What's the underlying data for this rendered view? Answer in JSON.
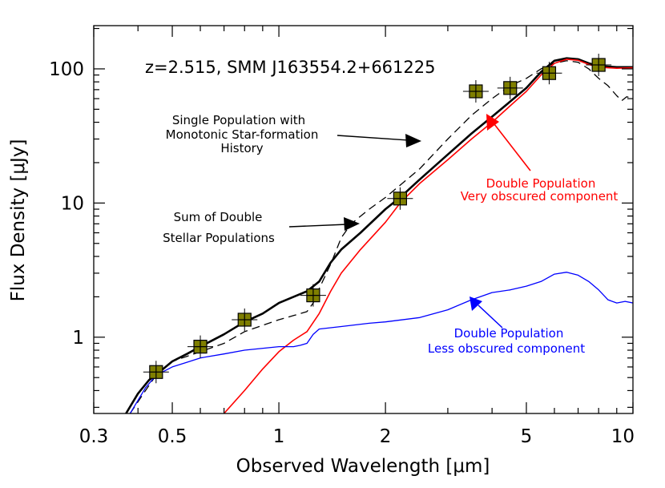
{
  "chart_data": {
    "type": "line",
    "title": "z=2.515, SMM J163554.2+661225",
    "xlabel": "Observed Wavelength [μm]",
    "ylabel": "Flux Density [μJy]",
    "xscale": "log",
    "yscale": "log",
    "xlim": [
      0.3,
      10
    ],
    "ylim": [
      0.27,
      210
    ],
    "x_ticks": [
      {
        "value": 0.3,
        "label": "0.3"
      },
      {
        "value": 0.5,
        "label": "0.5"
      },
      {
        "value": 1,
        "label": "1"
      },
      {
        "value": 2,
        "label": "2"
      },
      {
        "value": 5,
        "label": "5"
      },
      {
        "value": 10,
        "label": "10"
      }
    ],
    "y_ticks": [
      {
        "value": 1,
        "label": "1"
      },
      {
        "value": 10,
        "label": "10"
      },
      {
        "value": 100,
        "label": "100"
      }
    ],
    "series": [
      {
        "key": "single",
        "color": "#000000",
        "dash": "10,6",
        "width": 1.3,
        "points": [
          [
            0.38,
            0.27
          ],
          [
            0.42,
            0.4
          ],
          [
            0.45,
            0.52
          ],
          [
            0.5,
            0.66
          ],
          [
            0.55,
            0.72
          ],
          [
            0.6,
            0.78
          ],
          [
            0.7,
            0.9
          ],
          [
            0.8,
            1.1
          ],
          [
            1.0,
            1.35
          ],
          [
            1.1,
            1.45
          ],
          [
            1.2,
            1.55
          ],
          [
            1.25,
            1.8
          ],
          [
            1.3,
            2.3
          ],
          [
            1.4,
            3.5
          ],
          [
            1.5,
            5.5
          ],
          [
            1.6,
            7.0
          ],
          [
            1.8,
            9.0
          ],
          [
            2.0,
            11.0
          ],
          [
            2.5,
            18.0
          ],
          [
            3.0,
            30.0
          ],
          [
            3.5,
            45.0
          ],
          [
            4.0,
            60.0
          ],
          [
            4.5,
            75.0
          ],
          [
            5.0,
            85.0
          ],
          [
            5.5,
            100.0
          ],
          [
            6.0,
            110.0
          ],
          [
            6.5,
            115.0
          ],
          [
            7.0,
            112.0
          ],
          [
            7.5,
            100.0
          ],
          [
            8.0,
            85.0
          ],
          [
            8.5,
            75.0
          ],
          [
            9.0,
            63.0
          ],
          [
            9.3,
            58.0
          ],
          [
            9.6,
            62.0
          ],
          [
            10.0,
            60.0
          ]
        ]
      },
      {
        "key": "sum",
        "color": "#000000",
        "dash": "",
        "width": 2.6,
        "points": [
          [
            0.37,
            0.27
          ],
          [
            0.4,
            0.38
          ],
          [
            0.43,
            0.48
          ],
          [
            0.46,
            0.55
          ],
          [
            0.5,
            0.66
          ],
          [
            0.55,
            0.75
          ],
          [
            0.6,
            0.85
          ],
          [
            0.7,
            1.05
          ],
          [
            0.8,
            1.3
          ],
          [
            0.9,
            1.5
          ],
          [
            1.0,
            1.8
          ],
          [
            1.1,
            2.0
          ],
          [
            1.2,
            2.2
          ],
          [
            1.3,
            2.6
          ],
          [
            1.4,
            3.6
          ],
          [
            1.5,
            4.5
          ],
          [
            1.7,
            6.0
          ],
          [
            2.0,
            9.0
          ],
          [
            2.2,
            11.0
          ],
          [
            2.5,
            15.0
          ],
          [
            3.0,
            23.0
          ],
          [
            3.5,
            33.0
          ],
          [
            4.0,
            44.0
          ],
          [
            4.5,
            57.0
          ],
          [
            5.0,
            72.0
          ],
          [
            5.5,
            95.0
          ],
          [
            6.0,
            115.0
          ],
          [
            6.5,
            120.0
          ],
          [
            7.0,
            118.0
          ],
          [
            7.5,
            110.0
          ],
          [
            8.0,
            105.0
          ],
          [
            9.0,
            103.0
          ],
          [
            10.0,
            103.0
          ]
        ]
      },
      {
        "key": "obscured",
        "color": "#ff0000",
        "dash": "",
        "width": 1.6,
        "points": [
          [
            0.7,
            0.27
          ],
          [
            0.8,
            0.4
          ],
          [
            0.9,
            0.58
          ],
          [
            1.0,
            0.78
          ],
          [
            1.1,
            0.95
          ],
          [
            1.2,
            1.1
          ],
          [
            1.3,
            1.5
          ],
          [
            1.4,
            2.2
          ],
          [
            1.5,
            3.0
          ],
          [
            1.7,
            4.5
          ],
          [
            2.0,
            7.2
          ],
          [
            2.2,
            10.0
          ],
          [
            2.5,
            14.0
          ],
          [
            3.0,
            21.0
          ],
          [
            3.5,
            30.0
          ],
          [
            4.0,
            40.0
          ],
          [
            4.5,
            53.0
          ],
          [
            5.0,
            68.0
          ],
          [
            5.5,
            90.0
          ],
          [
            6.0,
            110.0
          ],
          [
            6.5,
            118.0
          ],
          [
            7.0,
            116.0
          ],
          [
            7.5,
            108.0
          ],
          [
            8.0,
            103.0
          ],
          [
            9.0,
            101.0
          ],
          [
            10.0,
            102.0
          ]
        ]
      },
      {
        "key": "less",
        "color": "#0000ff",
        "dash": "",
        "width": 1.3,
        "points": [
          [
            0.38,
            0.27
          ],
          [
            0.42,
            0.42
          ],
          [
            0.45,
            0.52
          ],
          [
            0.5,
            0.6
          ],
          [
            0.55,
            0.65
          ],
          [
            0.6,
            0.7
          ],
          [
            0.7,
            0.75
          ],
          [
            0.8,
            0.8
          ],
          [
            1.0,
            0.85
          ],
          [
            1.1,
            0.85
          ],
          [
            1.15,
            0.87
          ],
          [
            1.2,
            0.9
          ],
          [
            1.25,
            1.05
          ],
          [
            1.3,
            1.15
          ],
          [
            1.5,
            1.2
          ],
          [
            1.8,
            1.27
          ],
          [
            2.0,
            1.3
          ],
          [
            2.5,
            1.4
          ],
          [
            3.0,
            1.6
          ],
          [
            3.5,
            1.9
          ],
          [
            4.0,
            2.15
          ],
          [
            4.5,
            2.25
          ],
          [
            5.0,
            2.4
          ],
          [
            5.5,
            2.6
          ],
          [
            6.0,
            2.95
          ],
          [
            6.5,
            3.05
          ],
          [
            7.0,
            2.9
          ],
          [
            7.5,
            2.6
          ],
          [
            8.0,
            2.25
          ],
          [
            8.5,
            1.9
          ],
          [
            9.0,
            1.8
          ],
          [
            9.5,
            1.85
          ],
          [
            10.0,
            1.8
          ]
        ]
      }
    ],
    "observed_points": [
      {
        "x": 0.45,
        "y": 0.55
      },
      {
        "x": 0.6,
        "y": 0.85
      },
      {
        "x": 0.8,
        "y": 1.35
      },
      {
        "x": 1.25,
        "y": 2.05
      },
      {
        "x": 2.2,
        "y": 10.8
      },
      {
        "x": 3.6,
        "y": 68.0
      },
      {
        "x": 4.5,
        "y": 72.0
      },
      {
        "x": 5.8,
        "y": 93.0
      },
      {
        "x": 8.0,
        "y": 107.0
      }
    ],
    "marker_color": "#7f7f00",
    "annotations": {
      "single_line1": "Single Population with",
      "single_line2": "Monotonic Star-formation",
      "single_line3": "History",
      "sum_line1": "Sum of Double",
      "sum_line2": "Stellar Populations",
      "obscured_line1": "Double Population",
      "obscured_line2": "Very obscured component",
      "less_line1": "Double Population",
      "less_line2": "Less obscured component"
    },
    "annotation_colors": {
      "single": "#000000",
      "sum": "#000000",
      "obscured": "#ff0000",
      "less": "#0000ff"
    }
  }
}
